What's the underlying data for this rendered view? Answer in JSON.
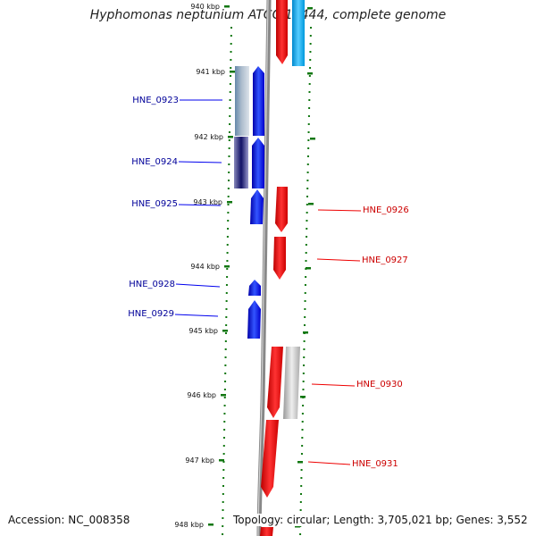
{
  "title": "Hyphomonas neptunium ATCC 15444, complete genome",
  "footer": {
    "accession": "Accession: NC_008358",
    "summary": "Topology: circular; Length: 3,705,021 bp; Genes: 3,552"
  },
  "colors": {
    "minus_strand": "#0000ee",
    "plus_strand": "#ee0000",
    "backbone": "#888888",
    "tick": "#117711",
    "blast_gray": "#bbbbbb",
    "blast_cyan": "#22aaee"
  },
  "ticks": [
    "940 kbp",
    "941 kbp",
    "942 kbp",
    "943 kbp",
    "944 kbp",
    "945 kbp",
    "946 kbp",
    "947 kbp",
    "948 kbp"
  ],
  "genes_left": [
    "HNE_0923",
    "HNE_0924",
    "HNE_0925",
    "HNE_0928",
    "HNE_0929"
  ],
  "genes_right": [
    "HNE_0926",
    "HNE_0927",
    "HNE_0930",
    "HNE_0931"
  ]
}
